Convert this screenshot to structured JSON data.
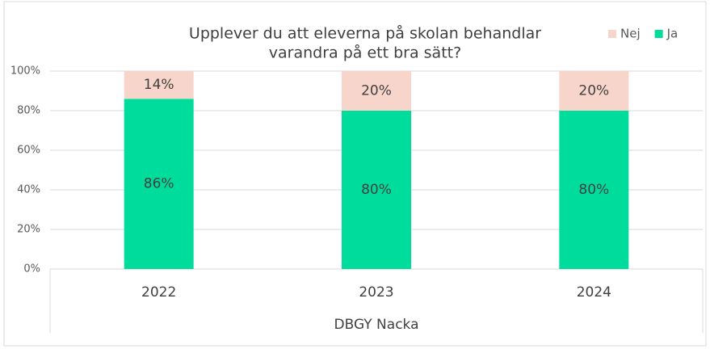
{
  "chart_data": {
    "type": "stacked_bar",
    "title": [
      "Upplever du att eleverna på skolan behandlar",
      "varandra på ett bra sätt?"
    ],
    "categories": [
      "2022",
      "2023",
      "2024"
    ],
    "group_label": "DBGY Nacka",
    "series": [
      {
        "name": "Ja",
        "color": "#00dc9b",
        "values": [
          86,
          80,
          80
        ],
        "value_labels": [
          "86%",
          "80%",
          "80%"
        ]
      },
      {
        "name": "Nej",
        "color": "#f8d5cb",
        "values": [
          14,
          20,
          20
        ],
        "value_labels": [
          "14%",
          "20%",
          "20%"
        ]
      }
    ],
    "ylim": [
      0,
      100
    ],
    "yticks": [
      {
        "value": 0,
        "label": "0%"
      },
      {
        "value": 20,
        "label": "20%"
      },
      {
        "value": 40,
        "label": "40%"
      },
      {
        "value": 60,
        "label": "60%"
      },
      {
        "value": 80,
        "label": "80%"
      },
      {
        "value": 100,
        "label": "100%"
      }
    ],
    "grid": true,
    "legend": "top-right"
  }
}
